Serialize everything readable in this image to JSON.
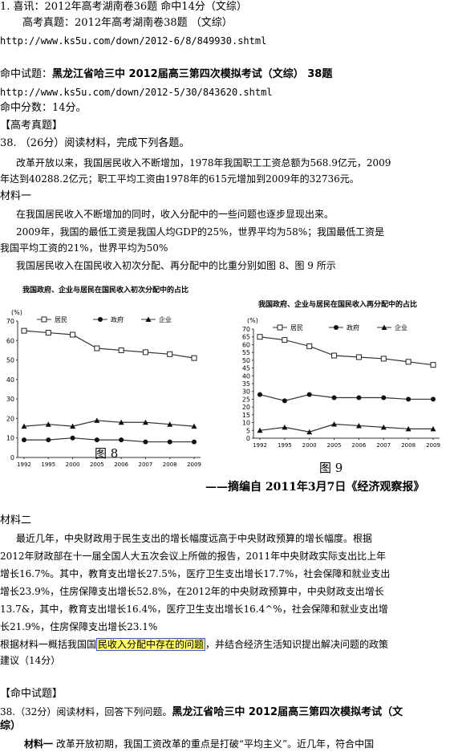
{
  "header": {
    "line1": "1. 喜讯：2012年高考湖南卷36题 命中14分（文综）",
    "line2": "高考真题：2012年高考湖南卷38题  （文综）",
    "url1": "http://www.ks5u.com/down/2012-6/8/849930.shtml",
    "hit_label": "命中试题：",
    "hit_title": "黑龙江省哈三中 2012届高三第四次模拟考试（文综） 38题",
    "url2": "http://www.ks5u.com/down/2012-5/30/843620.shtml",
    "score": "命中分数：14分。"
  },
  "exam": {
    "section": "【高考真题】",
    "q_intro": "38. （26分）阅读材料，完成下列各题。",
    "p1a": "改革开放以来，我国居民收入不断增加，1978年我国职工工资总额为568.9亿元，2009",
    "p1b": "年达到40288.2亿元；职工平均工资由1978年的615元增加到2009年的32736元。",
    "m1": "材料一",
    "p2": "在我国居民收入不断增加的同时，收入分配中的一些问题也逐步显现出来。",
    "p3a": "2009年，我国的最低工资是我国人均GDP的25%，世界平均为58%；我国最低工资是",
    "p3b": "我国平均工资的21%，世界平均为50%",
    "p4": "我国居民收入在国民收入初次分配、再分配中的比重分别如图 8、图 9 所示",
    "m2": "材料二",
    "p5a": "最近几年，中央财政用于民生支出的增长幅度远高于中央财政预算的增长幅度。根据",
    "p5b": "2012年财政部在十一届全国人大五次会议上所做的报告，2011年中央财政实际支出比上年",
    "p5c": "增长16.7%。其中，教育支出增长27.5%，医疗卫生支出增长17.7%，社会保障和就业支出",
    "p5d": "增长23.9%，住房保障支出增长52.8%，在2012年的中央财政预算中，中央财政支出增长",
    "p5e": "13.7&，其中，教育支出增长16.4%，医疗卫生支出增长16.4^%，社会保障和就业支出增",
    "p5f": "长21.9%，住房保障支出增长23.1%",
    "p6_pre": "根据材料一概括我国国",
    "p6_hl": "民收入分配中存在的问题",
    "p6_post": "，并结合经济生活知识提出解决问题的政策",
    "p6b": "建议（14分）"
  },
  "hit": {
    "section": "【命中试题】",
    "q_pre": "38.（32分）阅读材料，回答下列问题。",
    "q_bold": "黑龙江省哈三中 2012届高三第四次模拟考试（文",
    "q_bold2": "综）",
    "m1_label": "材料一",
    "m1_text": " 改革开放初期，我国工资改革的重点是打破“平均主义”。近几年，符合中国"
  },
  "figure": {
    "caption8": "图 8",
    "caption9": "图 9",
    "source": "——摘编自 2011年3月7日《经济观察报》"
  },
  "chart_data": [
    {
      "type": "line",
      "title": "我国政府、企业与居民在国民收入初次分配中的占比",
      "ylabel": "(%)",
      "ylim": [
        0,
        70
      ],
      "yticks": [
        0,
        10,
        20,
        30,
        40,
        50,
        60,
        70
      ],
      "categories": [
        "1992",
        "1995",
        "2000",
        "2005",
        "2006",
        "2007",
        "2008",
        "2009"
      ],
      "series": [
        {
          "name": "居民",
          "marker": "square",
          "values": [
            65,
            64,
            63,
            56,
            55,
            54,
            53,
            51
          ]
        },
        {
          "name": "政府",
          "marker": "circle",
          "values": [
            9,
            9,
            10,
            9,
            9,
            8,
            8,
            8
          ]
        },
        {
          "name": "企业",
          "marker": "triangle",
          "values": [
            16,
            17,
            16,
            19,
            18,
            18,
            17,
            16
          ]
        }
      ],
      "legend": "top"
    },
    {
      "type": "line",
      "title": "我国政府、企业与居民在国民收入再分配中的占比",
      "ylabel": "(%)",
      "ylim": [
        0,
        70
      ],
      "yticks": [
        0,
        5,
        10,
        15,
        20,
        25,
        30,
        35,
        40,
        45,
        50,
        55,
        60,
        65,
        70
      ],
      "categories": [
        "1992",
        "1995",
        "2000",
        "2005",
        "2006",
        "2007",
        "2008",
        "2009"
      ],
      "series": [
        {
          "name": "居民",
          "marker": "square",
          "values": [
            65,
            63,
            59,
            53,
            52,
            51,
            49,
            47
          ]
        },
        {
          "name": "政府",
          "marker": "circle",
          "values": [
            28,
            24,
            28,
            26,
            26,
            26,
            25,
            25
          ]
        },
        {
          "name": "企业",
          "marker": "triangle",
          "values": [
            5,
            7,
            4,
            9,
            8,
            7,
            6,
            6
          ]
        }
      ],
      "legend": "top"
    }
  ]
}
